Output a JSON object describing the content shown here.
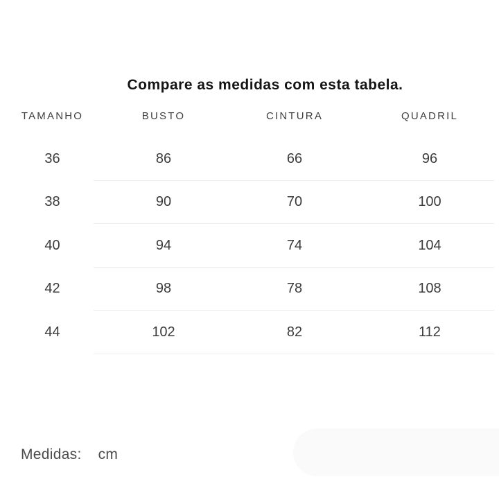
{
  "title": "Compare as medidas com esta tabela.",
  "table": {
    "headers": [
      "TAMANHO",
      "BUSTO",
      "CINTURA",
      "QUADRIL"
    ],
    "rows": [
      [
        "36",
        "86",
        "66",
        "96"
      ],
      [
        "38",
        "90",
        "70",
        "100"
      ],
      [
        "40",
        "94",
        "74",
        "104"
      ],
      [
        "42",
        "98",
        "78",
        "108"
      ],
      [
        "44",
        "102",
        "82",
        "112"
      ]
    ]
  },
  "footer": {
    "label": "Medidas:",
    "unit": "cm"
  },
  "chart_data": {
    "type": "table",
    "title": "Compare as medidas com esta tabela.",
    "columns": [
      "TAMANHO",
      "BUSTO",
      "CINTURA",
      "QUADRIL"
    ],
    "rows": [
      [
        36,
        86,
        66,
        96
      ],
      [
        38,
        90,
        70,
        100
      ],
      [
        40,
        94,
        74,
        104
      ],
      [
        42,
        98,
        78,
        108
      ],
      [
        44,
        102,
        82,
        112
      ]
    ],
    "unit": "cm",
    "layout": {
      "grid": "horizontal-dividers-only",
      "dividers_exclude_first_column": true
    }
  },
  "colors": {
    "background": "#ffffff",
    "title_text": "#141414",
    "header_text": "#3e3e3e",
    "cell_text": "#3b3b3b",
    "divider": "#ededed",
    "footer_text": "#4a4a4a",
    "pill": "#fafafa"
  }
}
